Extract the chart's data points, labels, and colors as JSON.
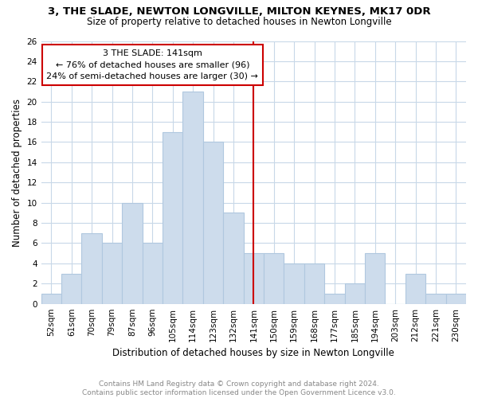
{
  "title": "3, THE SLADE, NEWTON LONGVILLE, MILTON KEYNES, MK17 0DR",
  "subtitle": "Size of property relative to detached houses in Newton Longville",
  "xlabel": "Distribution of detached houses by size in Newton Longville",
  "ylabel": "Number of detached properties",
  "categories": [
    "52sqm",
    "61sqm",
    "70sqm",
    "79sqm",
    "87sqm",
    "96sqm",
    "105sqm",
    "114sqm",
    "123sqm",
    "132sqm",
    "141sqm",
    "150sqm",
    "159sqm",
    "168sqm",
    "177sqm",
    "185sqm",
    "194sqm",
    "203sqm",
    "212sqm",
    "221sqm",
    "230sqm"
  ],
  "values": [
    1,
    3,
    7,
    6,
    10,
    6,
    17,
    21,
    16,
    9,
    5,
    5,
    4,
    4,
    1,
    2,
    5,
    0,
    3,
    1,
    1
  ],
  "bar_color": "#cddcec",
  "bar_edge_color": "#b0c8df",
  "vline_x_index": 10,
  "vline_color": "#cc0000",
  "annotation_text": "3 THE SLADE: 141sqm\n← 76% of detached houses are smaller (96)\n24% of semi-detached houses are larger (30) →",
  "annotation_box_edgecolor": "#cc0000",
  "ylim": [
    0,
    26
  ],
  "yticks": [
    0,
    2,
    4,
    6,
    8,
    10,
    12,
    14,
    16,
    18,
    20,
    22,
    24,
    26
  ],
  "grid_color": "#c8d8e8",
  "footnote": "Contains HM Land Registry data © Crown copyright and database right 2024.\nContains public sector information licensed under the Open Government Licence v3.0.",
  "title_fontsize": 9.5,
  "subtitle_fontsize": 8.5,
  "xlabel_fontsize": 8.5,
  "ylabel_fontsize": 8.5,
  "tick_fontsize": 7.5,
  "annotation_fontsize": 8,
  "footnote_fontsize": 6.5,
  "font_family": "DejaVu Sans"
}
